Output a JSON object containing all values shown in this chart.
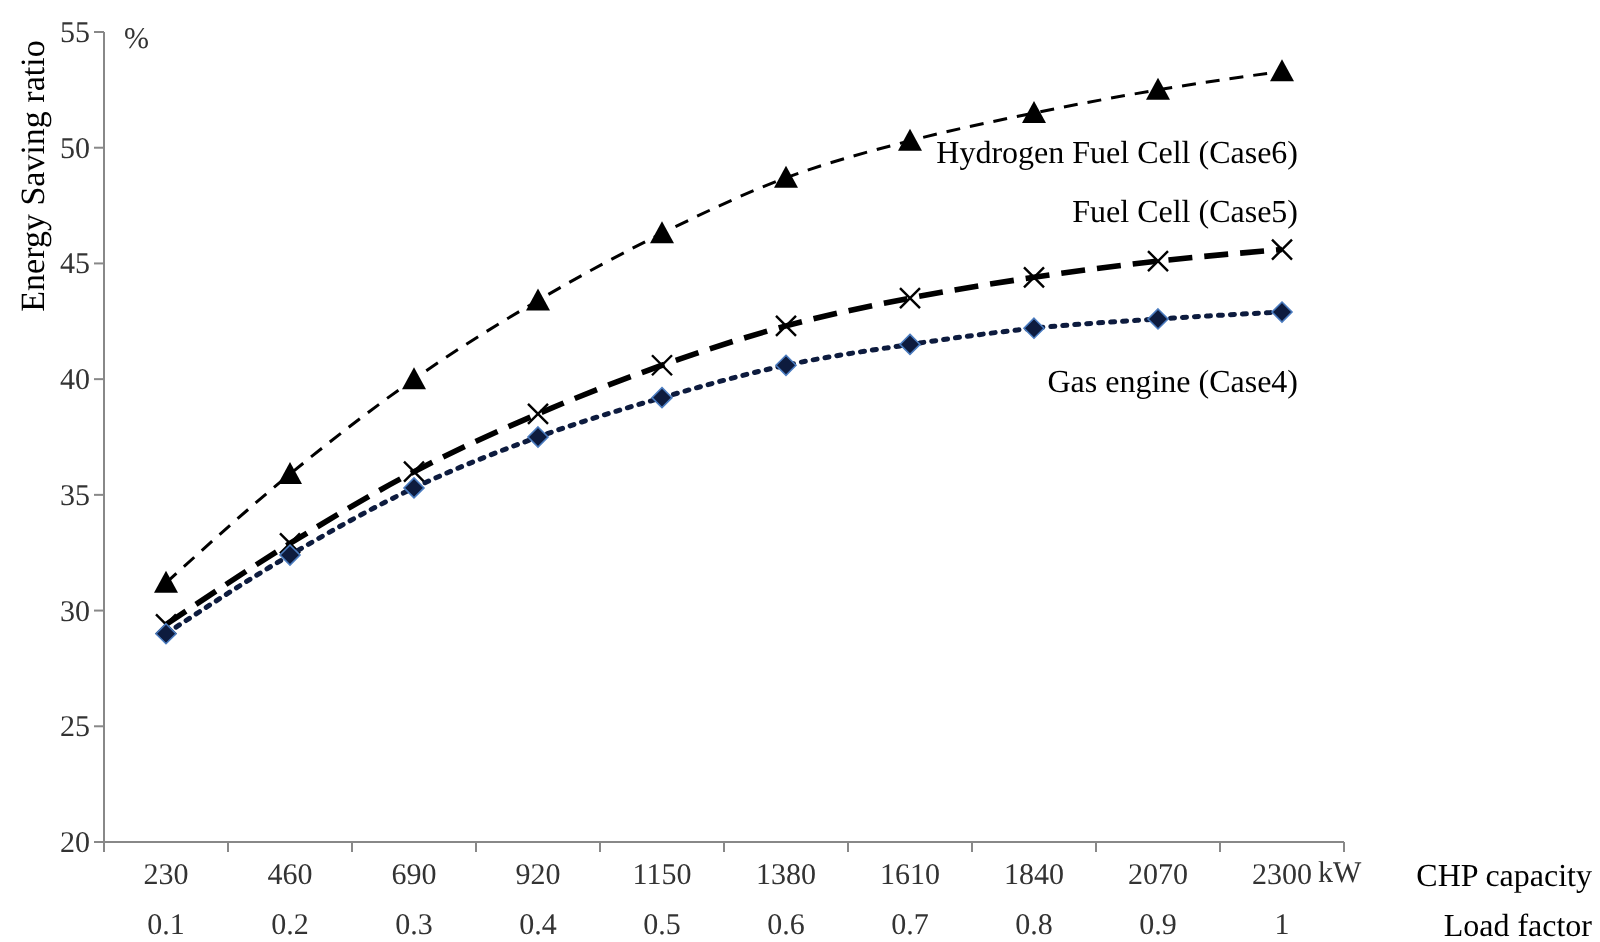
{
  "chart_data": {
    "type": "line",
    "ylabel": "Energy Saving ratio",
    "xlabel": "CHP capacity",
    "categories": [
      "230\n0.1",
      "460\n0.2",
      "690\n0.3",
      "920\n0.4",
      "1150\n0.5",
      "1380\n0.6",
      "1610\n0.7",
      "1840\n0.8",
      "2070\n0.9",
      "2300\n1"
    ],
    "annotations": [
      "%",
      "kW",
      "Load factor"
    ],
    "ylim": [
      20,
      55
    ],
    "yticks": [
      20,
      25,
      30,
      35,
      40,
      45,
      50,
      55
    ],
    "grid": false,
    "series": [
      {
        "name": "Hydrogen Fuel Cell  (Case6)",
        "color": "#000000",
        "marker": "triangle",
        "line_style": "dashed",
        "values": [
          31.2,
          35.9,
          40.0,
          43.4,
          46.3,
          48.7,
          50.3,
          51.5,
          52.5,
          53.3
        ]
      },
      {
        "name": "Fuel Cell (Case5)",
        "color": "#000000",
        "marker": "cross",
        "line_style": "dashed",
        "values": [
          29.4,
          32.9,
          36.0,
          38.5,
          40.6,
          42.3,
          43.5,
          44.4,
          45.1,
          45.6
        ]
      },
      {
        "name": "Gas engine (Case4)",
        "color": "#0d1b3e",
        "marker": "diamond",
        "line_style": "dotted",
        "values": [
          29.0,
          32.4,
          35.3,
          37.5,
          39.2,
          40.6,
          41.5,
          42.2,
          42.6,
          42.9
        ]
      }
    ]
  }
}
